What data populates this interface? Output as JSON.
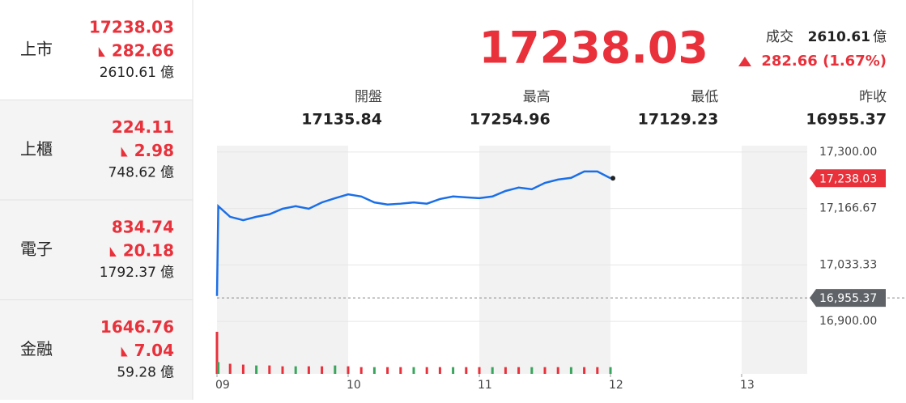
{
  "sidebar": [
    {
      "name": "上市",
      "price": "17238.03",
      "change": "282.66",
      "volume": "2610.61",
      "unit": "億"
    },
    {
      "name": "上櫃",
      "price": "224.11",
      "change": "2.98",
      "volume": "748.62",
      "unit": "億"
    },
    {
      "name": "電子",
      "price": "834.74",
      "change": "20.18",
      "volume": "1792.37",
      "unit": "億"
    },
    {
      "name": "金融",
      "price": "1646.76",
      "change": "7.04",
      "volume": "59.28",
      "unit": "億"
    }
  ],
  "quote": {
    "price": "17238.03",
    "turnover_label": "成交",
    "turnover": "2610.61",
    "turnover_unit": "億",
    "change": "282.66 (1.67%)",
    "stats": [
      {
        "label": "開盤",
        "value": "17135.84"
      },
      {
        "label": "最高",
        "value": "17254.96"
      },
      {
        "label": "最低",
        "value": "17129.23"
      },
      {
        "label": "昨收",
        "value": "16955.37"
      }
    ]
  },
  "chart_data": {
    "type": "line",
    "color": "#1a6fe8",
    "x": [
      9.0,
      9.01,
      9.1,
      9.2,
      9.3,
      9.4,
      9.5,
      9.6,
      9.7,
      9.8,
      9.9,
      10.0,
      10.1,
      10.2,
      10.3,
      10.4,
      10.5,
      10.6,
      10.7,
      10.8,
      10.9,
      11.0,
      11.1,
      11.2,
      11.3,
      11.4,
      11.5,
      11.6,
      11.7,
      11.8,
      11.9,
      12.0
    ],
    "values": [
      16960,
      17172,
      17147,
      17139,
      17147,
      17153,
      17166,
      17172,
      17166,
      17181,
      17191,
      17200,
      17195,
      17181,
      17176,
      17178,
      17181,
      17178,
      17189,
      17195,
      17193,
      17191,
      17195,
      17208,
      17216,
      17212,
      17227,
      17235,
      17239,
      17254,
      17254,
      17238
    ],
    "volume": [
      50,
      14,
      12,
      11,
      10,
      10,
      9,
      9,
      9,
      9,
      10,
      9,
      8,
      8,
      8,
      8,
      8,
      8,
      8,
      8,
      8,
      8,
      8,
      8,
      8,
      8,
      8,
      8,
      8,
      8,
      8,
      8
    ],
    "xlim": [
      9,
      13.5
    ],
    "xticks": [
      {
        "value": 9,
        "label": "09"
      },
      10,
      11,
      12,
      13
    ],
    "ylim": [
      16885,
      17315
    ],
    "yticks": [
      {
        "value": 16900,
        "label": "16,900.00"
      },
      {
        "value": 17033.33,
        "label": "17,033.33"
      },
      {
        "value": 17166.67,
        "label": "17,166.67"
      },
      {
        "value": 17300,
        "label": "17,300.00"
      }
    ],
    "prev_close": {
      "value": 16955.37,
      "label": "16,955.37"
    },
    "last_tag": {
      "value": 17238.03,
      "label": "17,238.03"
    }
  }
}
